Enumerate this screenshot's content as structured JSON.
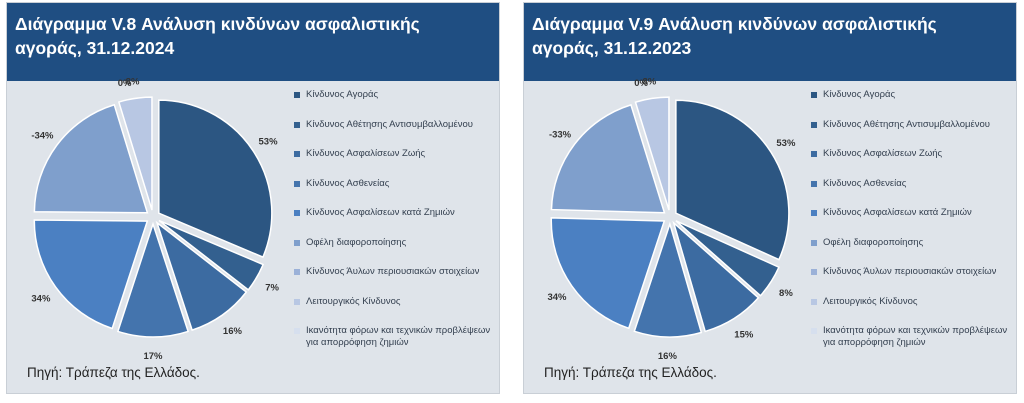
{
  "chart_data": [
    {
      "type": "pie",
      "title": "Διάγραμμα V.8 Ανάλυση κινδύνων ασφαλιστικής αγοράς, 31.12.2024",
      "categories": [
        "Κίνδυνος Αγοράς",
        "Κίνδυνος Αθέτησης Αντισυμβαλλομένου",
        "Κίνδυνος Ασφαλίσεων Ζωής",
        "Κίνδυνος Ασθενείας",
        "Κίνδυνος Ασφαλίσεων κατά Ζημιών",
        "Οφέλη διαφοροποίησης",
        "Κίνδυνος Άυλων περιουσιακών στοιχείων",
        "Λειτουργικός Κίνδυνος",
        "Ικανότητα φόρων και τεχνικών προβλέψεων για απορρόφηση ζημιών"
      ],
      "values": [
        53,
        7,
        16,
        17,
        34,
        -34,
        0,
        8,
        0
      ],
      "labels": [
        "53%",
        "7%",
        "16%",
        "17%",
        "34%",
        "-34%",
        "0%",
        "8%",
        ""
      ],
      "colors": [
        "#2c5682",
        "#33608f",
        "#3c6ba1",
        "#4474ad",
        "#4b80c2",
        "#7f9fcc",
        "#9bb1d8",
        "#b8c7e3",
        "#d6dfee"
      ],
      "source": "Πηγή: Τράπεζα της Ελλάδος."
    },
    {
      "type": "pie",
      "title": "Διάγραμμα V.9 Ανάλυση κινδύνων ασφαλιστικής αγοράς, 31.12.2023",
      "categories": [
        "Κίνδυνος Αγοράς",
        "Κίνδυνος Αθέτησης Αντισυμβαλλομένου",
        "Κίνδυνος Ασφαλίσεων Ζωής",
        "Κίνδυνος Ασθενείας",
        "Κίνδυνος Ασφαλίσεων κατά Ζημιών",
        "Οφέλη διαφοροποίησης",
        "Κίνδυνος Άυλων περιουσιακών στοιχείων",
        "Λειτουργικός Κίνδυνος",
        "Ικανότητα φόρων και τεχνικών προβλέψεων για απορρόφηση ζημιών"
      ],
      "values": [
        53,
        8,
        15,
        16,
        34,
        -33,
        0,
        8,
        0
      ],
      "labels": [
        "53%",
        "8%",
        "15%",
        "16%",
        "34%",
        "-33%",
        "0%",
        "8%",
        ""
      ],
      "colors": [
        "#2c5682",
        "#33608f",
        "#3c6ba1",
        "#4474ad",
        "#4b80c2",
        "#7f9fcc",
        "#9bb1d8",
        "#b8c7e3",
        "#d6dfee"
      ],
      "source": "Πηγή: Τράπεζα της Ελλάδος."
    }
  ]
}
